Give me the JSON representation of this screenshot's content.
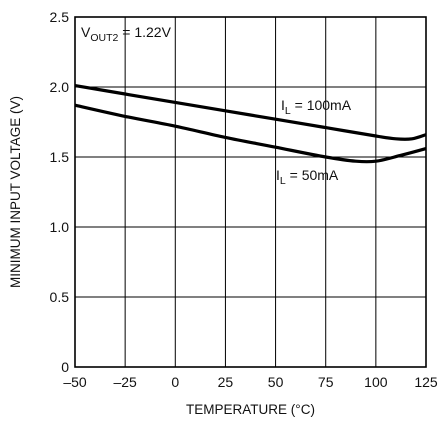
{
  "chart_data": {
    "type": "line",
    "xlabel": "TEMPERATURE (°C)",
    "ylabel": "MINIMUM INPUT VOLTAGE (V)",
    "xlim": [
      -50,
      125
    ],
    "ylim": [
      0,
      2.5
    ],
    "x_ticks": [
      -50,
      -25,
      0,
      25,
      50,
      75,
      100,
      125
    ],
    "y_ticks": [
      0,
      0.5,
      1.0,
      1.5,
      2.0,
      2.5
    ],
    "x_tick_labels": [
      "–50",
      "–25",
      "0",
      "25",
      "50",
      "75",
      "100",
      "125"
    ],
    "y_tick_labels": [
      "0",
      "0.5",
      "1.0",
      "1.5",
      "2.0",
      "2.5"
    ],
    "grid": true,
    "annotation": {
      "main": "V",
      "sub": "OUT2",
      "rest": " = 1.22V"
    },
    "series": [
      {
        "label": {
          "main": "I",
          "sub": "L",
          "rest": " = 100mA"
        },
        "x": [
          -50,
          -25,
          0,
          25,
          50,
          75,
          100,
          110,
          118,
          125
        ],
        "y": [
          2.01,
          1.95,
          1.89,
          1.83,
          1.77,
          1.71,
          1.65,
          1.63,
          1.63,
          1.66
        ]
      },
      {
        "label": {
          "main": "I",
          "sub": "L",
          "rest": " = 50mA"
        },
        "x": [
          -50,
          -25,
          0,
          25,
          50,
          75,
          90,
          100,
          112,
          125
        ],
        "y": [
          1.87,
          1.79,
          1.72,
          1.64,
          1.57,
          1.5,
          1.47,
          1.47,
          1.51,
          1.56
        ]
      }
    ]
  }
}
